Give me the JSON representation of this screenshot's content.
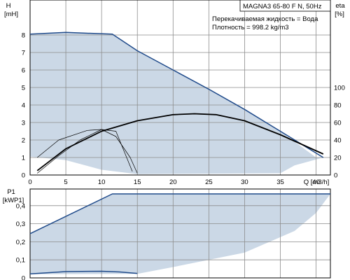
{
  "chart_data": [
    {
      "type": "line",
      "title_box": "MAGNA3 65-80 F N, 50Hz",
      "annotation_lines": [
        "Перекачиваемая жидкость = Вода",
        "Плотность = 998.2 kg/m3"
      ],
      "ylabel": "H",
      "yunit": "[mH]",
      "y2label": "eta",
      "y2unit": "[%]",
      "xunit": "Q [m3/h]",
      "xlim": [
        0,
        42
      ],
      "ylim": [
        0,
        9
      ],
      "y2lim": [
        0,
        180
      ],
      "x_ticks": [
        0,
        5,
        10,
        15,
        20,
        25,
        30,
        35,
        40
      ],
      "y_ticks": [
        0,
        1,
        2,
        3,
        4,
        5,
        6,
        7,
        8
      ],
      "y2_ticks": [
        0,
        20,
        40,
        60,
        80,
        100
      ],
      "grid": true,
      "operating_area": {
        "upper": [
          [
            0,
            8.05
          ],
          [
            5,
            8.15
          ],
          [
            11.5,
            8.05
          ],
          [
            15,
            7.1
          ],
          [
            20,
            6.0
          ],
          [
            25,
            4.9
          ],
          [
            30,
            3.75
          ],
          [
            35,
            2.5
          ],
          [
            40,
            1.0
          ]
        ],
        "lower": [
          [
            41,
            1.0
          ],
          [
            37,
            0.55
          ],
          [
            35,
            0.1
          ],
          [
            15,
            0.05
          ],
          [
            10,
            0.3
          ],
          [
            5,
            0.85
          ],
          [
            0,
            1.05
          ]
        ]
      },
      "series": [
        {
          "x": [
            0,
            5,
            11.5,
            15,
            20,
            25,
            30,
            35,
            41
          ],
          "y": [
            8.05,
            8.15,
            8.05,
            7.1,
            6.0,
            4.9,
            3.75,
            2.5,
            1.0
          ],
          "axis": "left",
          "style": "max"
        },
        {
          "x": [
            1,
            5,
            10,
            15,
            20,
            23,
            26,
            30,
            35,
            41
          ],
          "y": [
            0.25,
            1.5,
            2.5,
            3.1,
            3.45,
            3.5,
            3.45,
            3.1,
            2.3,
            1.2
          ],
          "axis": "left",
          "style": "thick"
        },
        {
          "x": [
            1,
            4,
            8,
            10,
            12,
            14,
            15
          ],
          "y": [
            1.0,
            2.0,
            2.55,
            2.6,
            2.2,
            1.0,
            0.1
          ],
          "axis": "left",
          "style": "thin"
        },
        {
          "x": [
            1,
            4,
            7,
            10,
            12,
            14.3
          ],
          "y": [
            0.1,
            1.1,
            2.0,
            2.6,
            2.5,
            0.2
          ],
          "axis": "left",
          "style": "thin"
        }
      ]
    },
    {
      "type": "line",
      "ylabel": "P1",
      "yunit": "[kWP1]",
      "xlim": [
        0,
        42
      ],
      "ylim": [
        0,
        0.5
      ],
      "y_ticks": [
        0,
        0.1,
        0.2,
        0.3,
        0.4
      ],
      "y_tick_labels": [
        "0",
        "0,1",
        "0,2",
        "0,3",
        "0,4"
      ],
      "grid": true,
      "operating_area": {
        "upper": [
          [
            0,
            0.245
          ],
          [
            11.5,
            0.465
          ],
          [
            42,
            0.465
          ]
        ],
        "lower": [
          [
            42,
            0.465
          ],
          [
            40,
            0.36
          ],
          [
            37,
            0.26
          ],
          [
            30,
            0.14
          ],
          [
            20,
            0.06
          ],
          [
            15,
            0.022
          ],
          [
            0,
            0.02
          ]
        ]
      },
      "series": [
        {
          "x": [
            0,
            11.5,
            42
          ],
          "y": [
            0.245,
            0.465,
            0.465
          ],
          "style": "max"
        },
        {
          "x": [
            0,
            5,
            10,
            12.5,
            15
          ],
          "y": [
            0.022,
            0.035,
            0.037,
            0.033,
            0.025
          ],
          "style": "max"
        }
      ]
    }
  ]
}
